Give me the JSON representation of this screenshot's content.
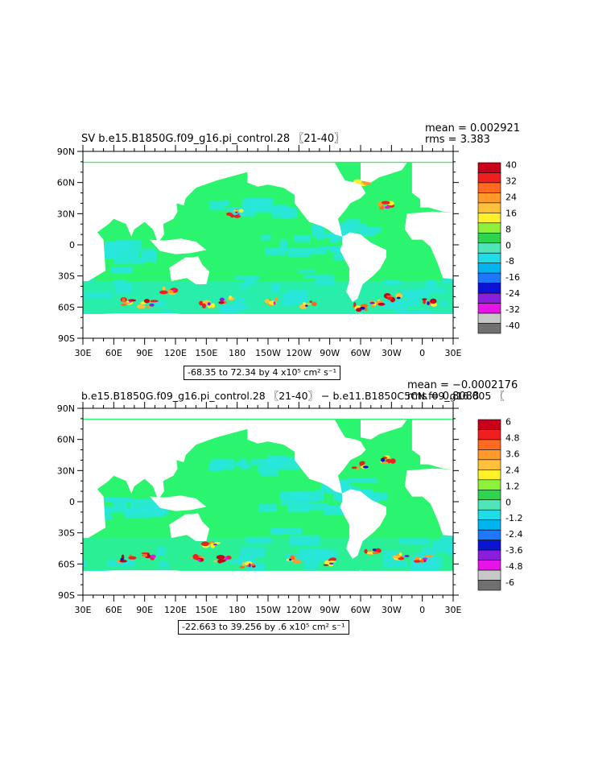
{
  "panels": [
    {
      "title": "SV b.e15.B1850G.f09_g16.pi_control.28 〖21-40〗",
      "mean_text": "mean = 0.002921",
      "rms_text": "rms = 3.383",
      "range_text": "-68.35 to 72.34 by 4",
      "units_text": "x10⁵ cm² s⁻¹",
      "colorbar_labels": [
        "40",
        "32",
        "24",
        "16",
        "8",
        "0",
        "-8",
        "-16",
        "-24",
        "-32",
        "-40"
      ]
    },
    {
      "title": "b.e15.B1850G.f09_g16.pi_control.28 〖21-40〗 − b.e11.B1850C5CN.f09_g16.005 〖",
      "mean_text": "mean = −0.0002176",
      "rms_text": "rms = 0.8088",
      "range_text": "-22.663 to 39.256 by .6",
      "units_text": "x10⁵ cm² s⁻¹",
      "colorbar_labels": [
        "6",
        "4.8",
        "3.6",
        "2.4",
        "1.2",
        "0",
        "-1.2",
        "-2.4",
        "-3.6",
        "-4.8",
        "-6"
      ]
    }
  ],
  "lat_labels": [
    "90N",
    "60N",
    "30N",
    "0",
    "30S",
    "60S",
    "90S"
  ],
  "lon_labels": [
    "30E",
    "60E",
    "90E",
    "120E",
    "150E",
    "180",
    "150W",
    "120W",
    "90W",
    "60W",
    "30W",
    "0",
    "30E"
  ],
  "colorbar_colors": [
    "#c8001a",
    "#f01e1e",
    "#ff6a1e",
    "#ff9a2a",
    "#ffc03c",
    "#fff02a",
    "#8ef23c",
    "#2ed34e",
    "#4ee6b8",
    "#20dce6",
    "#00b4f0",
    "#1e78ff",
    "#0a14d2",
    "#8a1edc",
    "#e614e6",
    "#c8c8c8",
    "#707070"
  ],
  "colors": {
    "ocean_base": "#2bf56e",
    "ocean_negative": "#28e6dc",
    "land": "#ffffff"
  }
}
